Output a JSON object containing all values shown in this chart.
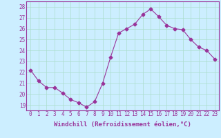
{
  "x": [
    0,
    1,
    2,
    3,
    4,
    5,
    6,
    7,
    8,
    9,
    10,
    11,
    12,
    13,
    14,
    15,
    16,
    17,
    18,
    19,
    20,
    21,
    22,
    23
  ],
  "y": [
    22.2,
    21.2,
    20.6,
    20.6,
    20.1,
    19.5,
    19.2,
    18.8,
    19.3,
    21.0,
    23.4,
    25.6,
    26.0,
    26.4,
    27.3,
    27.8,
    27.1,
    26.3,
    26.0,
    25.9,
    25.0,
    24.3,
    24.0,
    23.2
  ],
  "line_color": "#993399",
  "marker": "D",
  "marker_size": 2.5,
  "bg_color": "#cceeff",
  "grid_color": "#aaddcc",
  "xlabel": "Windchill (Refroidissement éolien,°C)",
  "ylim": [
    18.5,
    28.5
  ],
  "xlim": [
    -0.5,
    23.5
  ],
  "yticks": [
    19,
    20,
    21,
    22,
    23,
    24,
    25,
    26,
    27,
    28
  ],
  "xticks": [
    0,
    1,
    2,
    3,
    4,
    5,
    6,
    7,
    8,
    9,
    10,
    11,
    12,
    13,
    14,
    15,
    16,
    17,
    18,
    19,
    20,
    21,
    22,
    23
  ],
  "tick_fontsize": 5.5,
  "xlabel_fontsize": 6.5
}
